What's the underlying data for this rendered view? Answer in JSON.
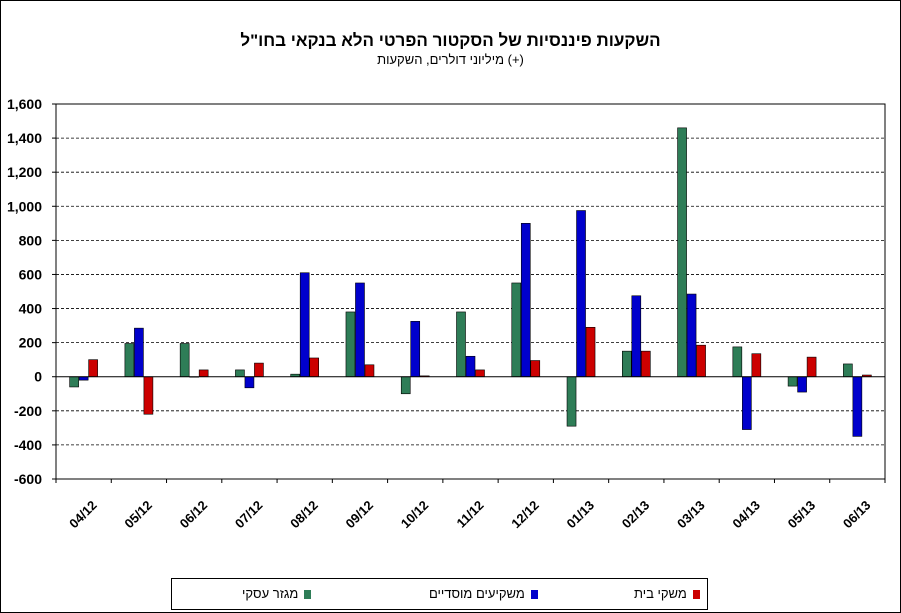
{
  "chart_data": {
    "type": "bar",
    "title": "השקעות פיננסיות של הסקטור הפרטי הלא בנקאי בחו\"ל",
    "subtitle": "מיליוני דולרים, השקעות (+)",
    "categories": [
      "04/12",
      "05/12",
      "06/12",
      "07/12",
      "08/12",
      "09/12",
      "10/12",
      "11/12",
      "12/12",
      "01/13",
      "02/13",
      "03/13",
      "04/13",
      "05/13",
      "06/13"
    ],
    "series": [
      {
        "name": "מגזר עסקי",
        "color": "#2e7d57",
        "values": [
          -60,
          195,
          195,
          40,
          15,
          380,
          -100,
          380,
          550,
          -290,
          150,
          1460,
          175,
          -55,
          75
        ]
      },
      {
        "name": "משקיעים מוסדיים",
        "color": "#0000cc",
        "values": [
          -20,
          285,
          0,
          -65,
          610,
          550,
          325,
          120,
          900,
          975,
          475,
          485,
          -310,
          -90,
          -350
        ]
      },
      {
        "name": "משקי בית",
        "color": "#cc0000",
        "values": [
          100,
          -220,
          40,
          80,
          110,
          70,
          5,
          40,
          95,
          290,
          150,
          185,
          135,
          115,
          10
        ]
      }
    ],
    "ylim": [
      -600,
      1600
    ],
    "ytick_values": [
      -600,
      -400,
      -200,
      0,
      200,
      400,
      600,
      800,
      1000,
      1200,
      1400,
      1600
    ],
    "ytick_labels": [
      "-600",
      "-400",
      "-200",
      "0",
      "200",
      "400",
      "600",
      "800",
      "1,000",
      "1,200",
      "1,400",
      "1,600"
    ],
    "grid": true,
    "legend_position": "bottom"
  }
}
